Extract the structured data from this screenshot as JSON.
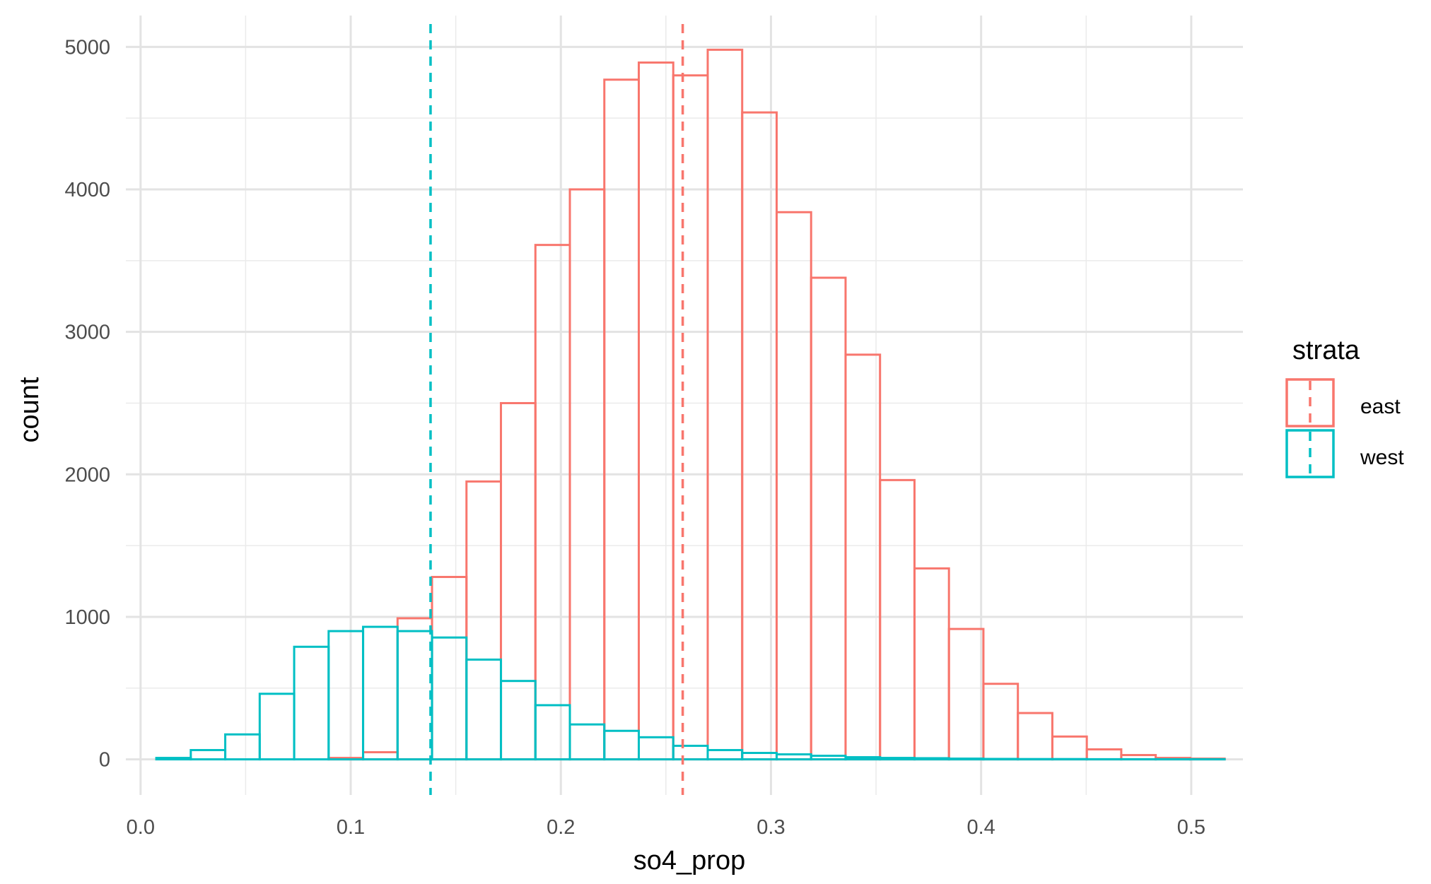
{
  "chart_data": {
    "type": "histogram",
    "xlabel": "so4_prop",
    "ylabel": "count",
    "xlim": [
      -0.007,
      0.5246
    ],
    "ylim": [
      -250,
      5220
    ],
    "x_ticks": [
      0.0,
      0.1,
      0.2,
      0.3,
      0.4,
      0.5
    ],
    "x_tick_labels": [
      "0.0",
      "0.1",
      "0.2",
      "0.3",
      "0.4",
      "0.5"
    ],
    "x_minor_ticks": [
      0.05,
      0.15,
      0.25,
      0.35,
      0.45
    ],
    "y_ticks": [
      0,
      1000,
      2000,
      3000,
      4000,
      5000
    ],
    "y_tick_labels": [
      "0",
      "1000",
      "2000",
      "3000",
      "4000",
      "5000"
    ],
    "y_minor_ticks": [
      500,
      1500,
      2500,
      3500,
      4500
    ],
    "grid": true,
    "bin_width": 0.0164,
    "bin_start": 0.0075,
    "legend": {
      "title": "strata",
      "position": "right",
      "entries": [
        "east",
        "west"
      ]
    },
    "series": [
      {
        "name": "east",
        "color": "#F8766D",
        "mean_line": 0.258,
        "values": [
          0,
          0,
          0,
          0,
          0,
          10,
          50,
          990,
          1280,
          1950,
          2500,
          3610,
          4000,
          4770,
          4890,
          4800,
          4980,
          4540,
          3840,
          3380,
          2840,
          1960,
          1340,
          915,
          530,
          325,
          160,
          70,
          30,
          10,
          5
        ]
      },
      {
        "name": "west",
        "color": "#00BFC4",
        "mean_line": 0.138,
        "values": [
          10,
          65,
          175,
          460,
          790,
          900,
          930,
          900,
          855,
          700,
          550,
          380,
          245,
          200,
          155,
          95,
          65,
          45,
          35,
          25,
          15,
          10,
          8,
          5,
          3,
          2,
          2,
          1,
          1,
          1,
          1
        ]
      }
    ]
  }
}
